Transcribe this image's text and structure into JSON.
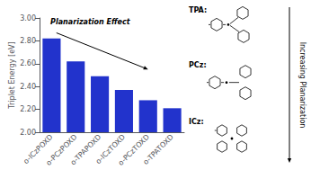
{
  "chart_data": {
    "type": "bar",
    "categories": [
      "o-ICzPOXD",
      "o-PCzPOXD",
      "o-TPAPOXD",
      "o-ICzTOXD",
      "o-PCzTOXD",
      "o-TPATOXD"
    ],
    "values": [
      2.82,
      2.62,
      2.49,
      2.37,
      2.28,
      2.21
    ],
    "color": "#2233cc",
    "ylabel": "Triplet Energy [eV]",
    "ylim": [
      2.0,
      3.0
    ],
    "yticks": [
      {
        "value": 2.0,
        "label": "2.00"
      },
      {
        "value": 2.2,
        "label": "2.20"
      },
      {
        "value": 2.4,
        "label": "2.40"
      },
      {
        "value": 2.6,
        "label": "2.60"
      },
      {
        "value": 2.8,
        "label": "2.80"
      },
      {
        "value": 3.0,
        "label": "3.00"
      }
    ],
    "grid": false,
    "annotations": [
      "Planarization Effect",
      "TPA:",
      "PCz:",
      "ICz:",
      "Increasing Planarization"
    ]
  }
}
